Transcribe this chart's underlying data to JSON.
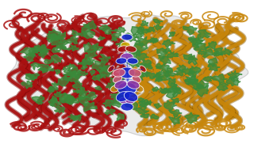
{
  "bg_color": "#ffffff",
  "surface_color": "#e0e0e0",
  "surface_alpha": 0.6,
  "helix_red_color": "#aa1111",
  "helix_red_edge": "#770000",
  "helix_gold_color": "#c8860a",
  "helix_gold_edge": "#8a5a00",
  "helix_green_color": "#3a8a3a",
  "center_blue_color": "#1122cc",
  "center_purple_color": "#8833aa",
  "center_pink_color": "#cc5577",
  "center_red_color": "#cc3322",
  "center_gold_color": "#ccaa00",
  "figsize": [
    3.2,
    1.87
  ],
  "dpi": 100
}
